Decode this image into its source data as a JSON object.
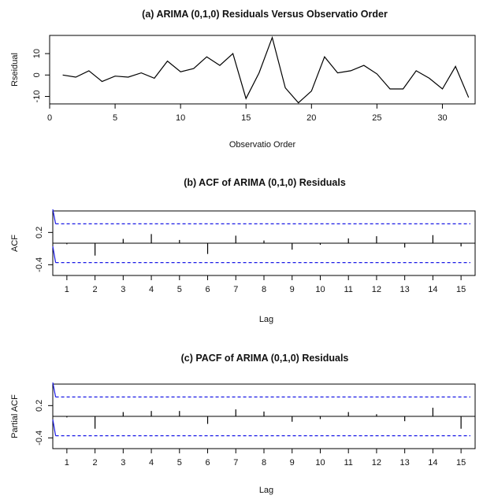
{
  "chart_data": [
    {
      "type": "line",
      "title": "(a) ARIMA (0,1,0) Residuals Versus Observatio Order",
      "xlabel": "Observatio Order",
      "ylabel": "Rseidual",
      "xlim": [
        0,
        32.5
      ],
      "ylim": [
        -13.5,
        18.5
      ],
      "x_ticks": [
        "0",
        "5",
        "10",
        "15",
        "20",
        "25",
        "30"
      ],
      "y_ticks": [
        "-10",
        "0",
        "10"
      ],
      "x": [
        1,
        2,
        3,
        4,
        5,
        6,
        7,
        8,
        9,
        10,
        11,
        12,
        13,
        14,
        15,
        16,
        17,
        18,
        19,
        20,
        21,
        22,
        23,
        24,
        25,
        26,
        27,
        28,
        29,
        30,
        31,
        32
      ],
      "values": [
        0,
        -1,
        2,
        -3,
        -0.5,
        -1,
        1,
        -1.5,
        6.5,
        1.5,
        3,
        8.5,
        4.5,
        10,
        -11,
        1,
        17.5,
        -6,
        -13,
        -7.5,
        8.5,
        1,
        2,
        4.5,
        0.5,
        -6.5,
        -6.5,
        2,
        -1.5,
        -6.5,
        4,
        -10.5
      ],
      "line_color": "#000000"
    },
    {
      "type": "bar",
      "title": "(b) ACF of ARIMA (0,1,0) Residuals",
      "xlabel": "Lag",
      "ylabel": "ACF",
      "xlim": [
        0.5,
        15.5
      ],
      "ylim": [
        -0.6,
        0.6
      ],
      "x_ticks": [
        "1",
        "2",
        "3",
        "4",
        "5",
        "6",
        "7",
        "8",
        "9",
        "10",
        "11",
        "12",
        "13",
        "14",
        "15"
      ],
      "y_ticks": [
        "-0.4",
        "0.2"
      ],
      "lags": [
        1,
        2,
        3,
        4,
        5,
        6,
        7,
        8,
        9,
        10,
        11,
        12,
        13,
        14,
        15
      ],
      "values": [
        -0.02,
        -0.23,
        0.08,
        0.17,
        0.06,
        -0.2,
        0.14,
        0.05,
        -0.12,
        -0.03,
        0.09,
        0.13,
        -0.08,
        0.15,
        -0.06
      ],
      "confidence_band": 0.36,
      "band_color": "#1a1ae6",
      "bar_color": "#000000"
    },
    {
      "type": "bar",
      "title": "(c) PACF of ARIMA (0,1,0) Residuals",
      "xlabel": "Lag",
      "ylabel": "Partial ACF",
      "xlim": [
        0.5,
        15.5
      ],
      "ylim": [
        -0.6,
        0.6
      ],
      "x_ticks": [
        "1",
        "2",
        "3",
        "4",
        "5",
        "6",
        "7",
        "8",
        "9",
        "10",
        "11",
        "12",
        "13",
        "14",
        "15"
      ],
      "y_ticks": [
        "-0.4",
        "0.2"
      ],
      "lags": [
        1,
        2,
        3,
        4,
        5,
        6,
        7,
        8,
        9,
        10,
        11,
        12,
        13,
        14,
        15
      ],
      "values": [
        -0.02,
        -0.23,
        0.08,
        0.1,
        0.1,
        -0.14,
        0.13,
        0.09,
        -0.1,
        -0.05,
        0.08,
        0.04,
        -0.09,
        0.16,
        -0.23
      ],
      "confidence_band": 0.36,
      "band_color": "#1a1ae6",
      "bar_color": "#000000"
    }
  ]
}
